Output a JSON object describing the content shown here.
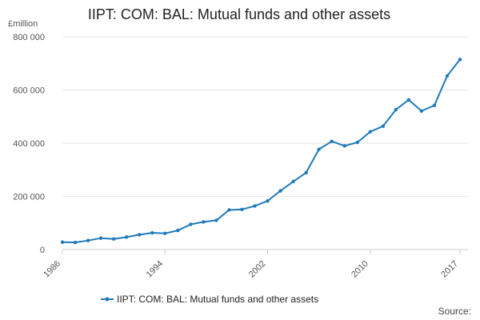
{
  "chart_data": {
    "type": "line",
    "title": "IIPT: COM: BAL: Mutual funds and other assets",
    "unit_label": "£million",
    "xlabel": "",
    "ylabel": "£million",
    "x": [
      1986,
      1987,
      1988,
      1989,
      1990,
      1991,
      1992,
      1993,
      1994,
      1995,
      1996,
      1997,
      1998,
      1999,
      2000,
      2001,
      2002,
      2003,
      2004,
      2005,
      2006,
      2007,
      2008,
      2009,
      2010,
      2011,
      2012,
      2013,
      2014,
      2015,
      2016,
      2017
    ],
    "xlim": [
      1986,
      2017
    ],
    "ylim": [
      0,
      800000
    ],
    "x_tick_values": [
      1986,
      1994,
      2002,
      2010,
      2017
    ],
    "x_tick_labels": [
      "1986",
      "1994",
      "2002",
      "2010",
      "2017"
    ],
    "y_tick_values": [
      0,
      200000,
      400000,
      600000,
      800000
    ],
    "y_tick_labels": [
      "0",
      "200 000",
      "400 000",
      "600 000",
      "800 000"
    ],
    "grid": true,
    "legend_position": "bottom",
    "series": [
      {
        "name": "IIPT: COM: BAL: Mutual funds and other assets",
        "color": "#1f7ab8",
        "values": [
          28000,
          27000,
          34000,
          43000,
          40000,
          47000,
          56000,
          63000,
          61000,
          72000,
          95000,
          104000,
          110000,
          149000,
          151000,
          164000,
          183000,
          221000,
          256000,
          289000,
          377000,
          407000,
          390000,
          403000,
          443000,
          464000,
          526000,
          563000,
          521000,
          542000,
          653000,
          715000
        ]
      }
    ],
    "source_label": "Source:"
  }
}
